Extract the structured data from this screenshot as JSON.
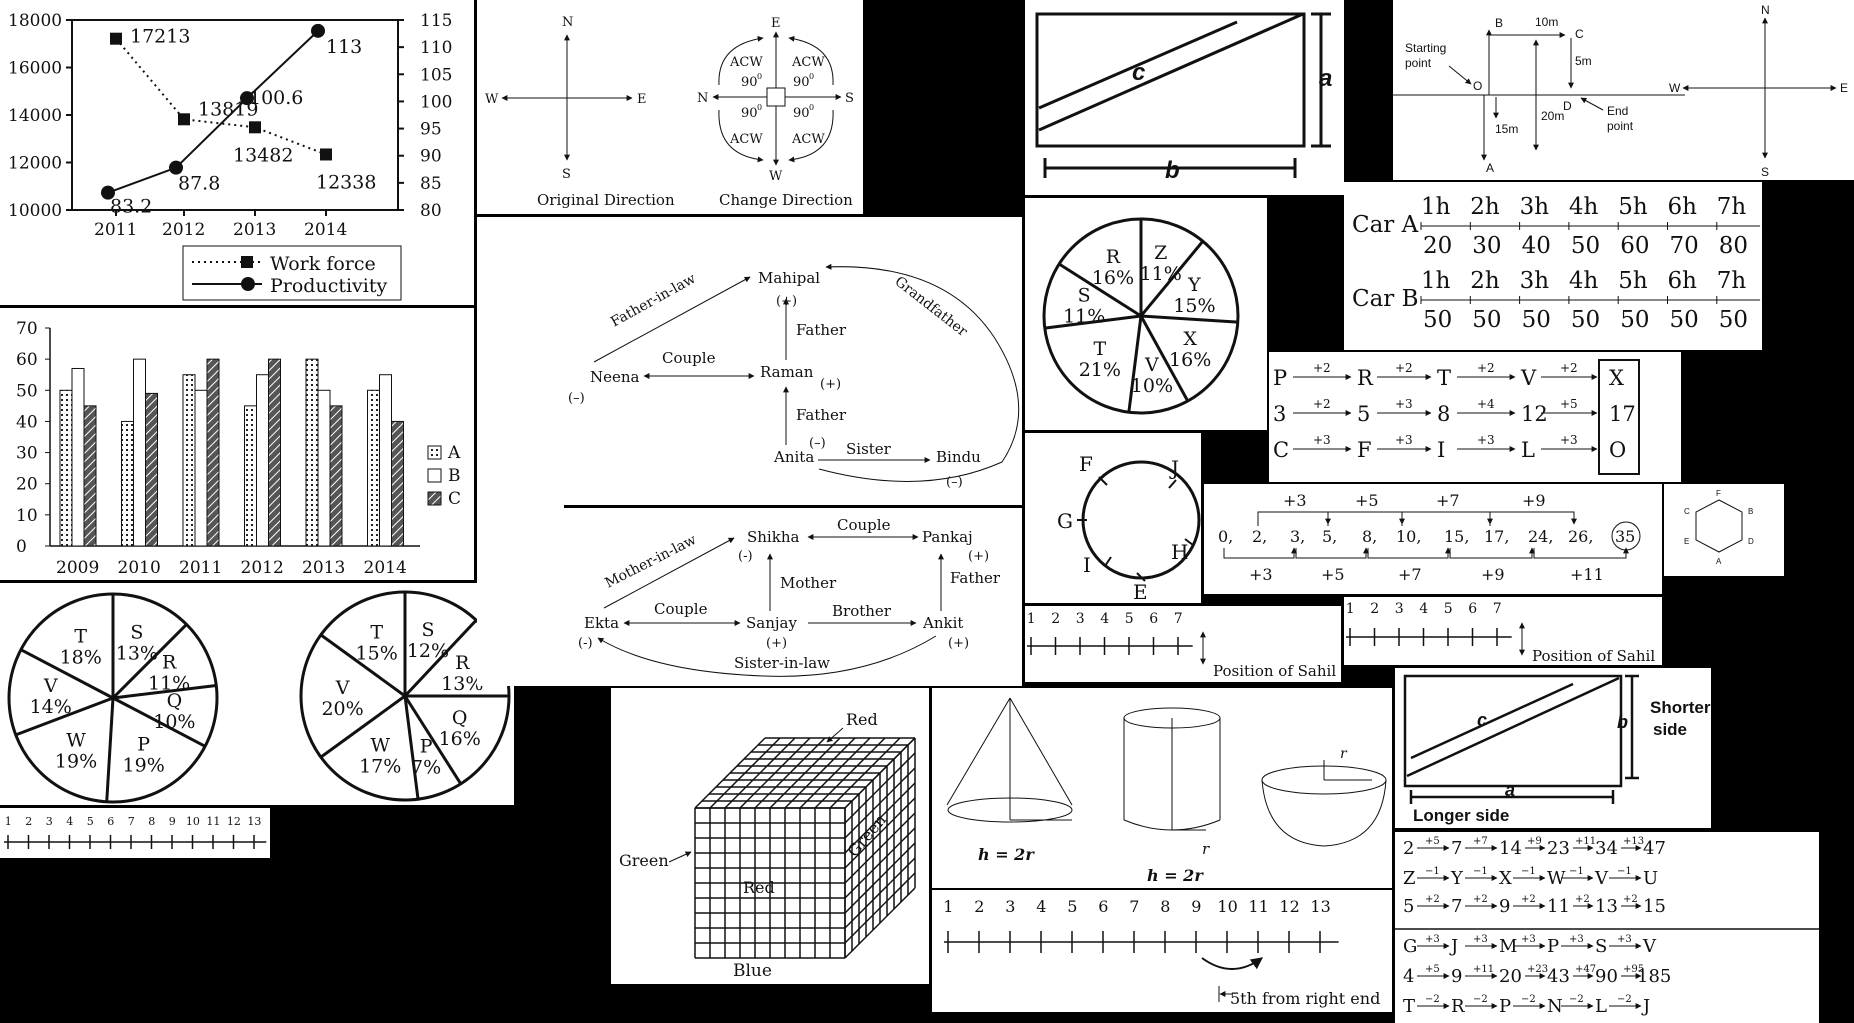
{
  "line_chart": {
    "chart_data": {
      "type": "line",
      "categories": [
        "2011",
        "2012",
        "2013",
        "2014"
      ],
      "series": [
        {
          "name": "Work force",
          "axis": "left",
          "values": [
            17213,
            13819,
            13482,
            12338
          ]
        },
        {
          "name": "Productivity",
          "axis": "right",
          "values": [
            83.2,
            87.8,
            100.6,
            113
          ]
        }
      ],
      "ylim_left": [
        10000,
        18000
      ],
      "ylim_right": [
        80,
        115
      ],
      "yticks_left": [
        "10000",
        "12000",
        "14000",
        "16000",
        "18000"
      ],
      "yticks_right": [
        "80",
        "85",
        "90",
        "95",
        "100",
        "105",
        "110",
        "115"
      ],
      "value_labels": {
        "Work force": [
          "17213",
          "13819",
          "13482",
          "12338"
        ],
        "Productivity": [
          "83.2",
          "87.8",
          "100.6",
          "113"
        ]
      },
      "legend": [
        "Work force",
        "Productivity"
      ]
    }
  },
  "bar_chart": {
    "chart_data": {
      "type": "bar",
      "categories": [
        "2009",
        "2010",
        "2011",
        "2012",
        "2013",
        "2014"
      ],
      "series": [
        {
          "name": "A",
          "values": [
            50,
            40,
            55,
            45,
            60,
            50
          ]
        },
        {
          "name": "B",
          "values": [
            57,
            60,
            50,
            55,
            50,
            55
          ]
        },
        {
          "name": "C",
          "values": [
            45,
            49,
            60,
            60,
            45,
            40
          ]
        }
      ],
      "ylim": [
        0,
        70
      ],
      "yticks": [
        "0",
        "10",
        "20",
        "30",
        "40",
        "50",
        "60",
        "70"
      ]
    }
  },
  "pie1": {
    "chart_data": {
      "type": "pie",
      "labels": [
        "S",
        "R",
        "Q",
        "P",
        "W",
        "V",
        "T"
      ],
      "values": [
        13,
        11,
        10,
        19,
        19,
        14,
        18
      ],
      "texts": [
        "13%",
        "11%",
        "10%",
        "19%",
        "19%",
        "14%",
        "18%"
      ]
    }
  },
  "pie2": {
    "chart_data": {
      "type": "pie",
      "labels": [
        "S",
        "R",
        "Q",
        "P",
        "W",
        "V",
        "T"
      ],
      "values": [
        12,
        13,
        16,
        7,
        17,
        20,
        15
      ],
      "texts": [
        "12%",
        "13%",
        "16%",
        "7%",
        "17%",
        "20%",
        "15%"
      ]
    }
  },
  "pie3": {
    "chart_data": {
      "type": "pie",
      "labels": [
        "Z",
        "Y",
        "X",
        "V",
        "T",
        "S",
        "R"
      ],
      "values": [
        11,
        15,
        16,
        10,
        21,
        11,
        16
      ],
      "texts": [
        "11%",
        "15%",
        "16%",
        "10%",
        "21%",
        "11%",
        "16%"
      ]
    }
  },
  "directions": {
    "n": "N",
    "s": "S",
    "e": "E",
    "w": "W",
    "acw": "ACW",
    "ninety": "90",
    "zero": "0",
    "original": "Original Direction",
    "change": "Change Direction"
  },
  "family1": {
    "mahipal": "Mahipal",
    "neena": "Neena",
    "raman": "Raman",
    "anita": "Anita",
    "bindu": "Bindu",
    "fatherinlaw": "Father-in-law",
    "couple": "Couple",
    "father": "Father",
    "grandfather": "Grandfather",
    "sister": "Sister",
    "plus": "(+)",
    "minus": "(–)"
  },
  "family2": {
    "shikha": "Shikha",
    "pankaj": "Pankaj",
    "ekta": "Ekta",
    "sanjay": "Sanjay",
    "ankit": "Ankit",
    "motherinlaw": "Mother-in-law",
    "couple": "Couple",
    "mother": "Mother",
    "father": "Father",
    "brother": "Brother",
    "sisterinlaw": "Sister-in-law",
    "plus": "(+)",
    "minus": "(-)"
  },
  "rect1": {
    "c": "c",
    "a": "a",
    "b": "b"
  },
  "rect2": {
    "c": "c",
    "a": "a",
    "b": "b",
    "longer": "Longer side",
    "shorter1": "Shorter",
    "shorter2": "side"
  },
  "path_diagram": {
    "b": "B",
    "c": "C",
    "o": "O",
    "a": "A",
    "d": "D",
    "m10": "10m",
    "m5": "5m",
    "m15": "15m",
    "m20": "20m",
    "start1": "Starting",
    "start2": "point",
    "end1": "End",
    "end2": "point"
  },
  "compass2": {
    "n": "N",
    "s": "S",
    "e": "E",
    "w": "W"
  },
  "cars": {
    "car_a": "Car A",
    "car_b": "Car B",
    "hours": [
      "1h",
      "2h",
      "3h",
      "4h",
      "5h",
      "6h",
      "7h"
    ],
    "a_vals": [
      "20",
      "30",
      "40",
      "50",
      "60",
      "70",
      "80"
    ],
    "b_vals": [
      "50",
      "50",
      "50",
      "50",
      "50",
      "50",
      "50"
    ]
  },
  "series_panel": {
    "rows": [
      {
        "terms": [
          "P",
          "R",
          "T",
          "V"
        ],
        "ops": [
          "+2",
          "+2",
          "+2",
          "+2"
        ],
        "ans": "X"
      },
      {
        "terms": [
          "3",
          "5",
          "8",
          "12"
        ],
        "ops": [
          "+2",
          "+3",
          "+4",
          "+5"
        ],
        "ans": "17"
      },
      {
        "terms": [
          "C",
          "F",
          "I",
          "L"
        ],
        "ops": [
          "+3",
          "+3",
          "+3",
          "+3"
        ],
        "ans": "O"
      }
    ]
  },
  "circle_seat": {
    "f": "F",
    "j": "J",
    "g": "G",
    "h": "H",
    "i": "I",
    "e": "E"
  },
  "number_jump": {
    "nums": [
      "0,",
      "2,",
      "3,",
      "5,",
      "8,",
      "10,",
      "15,",
      "17,",
      "24,",
      "26,",
      "35"
    ],
    "top": [
      "+3",
      "+5",
      "+7",
      "+9"
    ],
    "bottom": [
      "+3",
      "+5",
      "+7",
      "+9",
      "+11"
    ]
  },
  "hexagon": {
    "labels": [
      "F",
      "B",
      "D",
      "A",
      "E",
      "C"
    ]
  },
  "sahil1": {
    "nums": [
      "1",
      "2",
      "3",
      "4",
      "5",
      "6",
      "7"
    ],
    "caption": "Position of Sahil"
  },
  "sahil2": {
    "nums": [
      "1",
      "2",
      "3",
      "4",
      "5",
      "6",
      "7"
    ],
    "caption": "Position of Sahil"
  },
  "cube": {
    "red_top": "Red",
    "green_left": "Green",
    "green_right": "Green",
    "red_front": "Red",
    "blue": "Blue"
  },
  "solids": {
    "h1": "h = 2r",
    "h2": "h = 2r",
    "r1": "r",
    "r2": "r"
  },
  "ruler13": {
    "nums": [
      "1",
      "2",
      "3",
      "4",
      "5",
      "6",
      "7",
      "8",
      "9",
      "10",
      "11",
      "12",
      "13"
    ]
  },
  "ruler_right": {
    "nums": [
      "1",
      "2",
      "3",
      "4",
      "5",
      "6",
      "7",
      "8",
      "9",
      "10",
      "11",
      "12",
      "13"
    ],
    "caption": "5th from right end"
  },
  "series_right": {
    "rows": [
      {
        "terms": [
          "2",
          "7",
          "14",
          "23",
          "34",
          "47"
        ],
        "ops": [
          "+5",
          "+7",
          "+9",
          "+11",
          "+13"
        ]
      },
      {
        "terms": [
          "Z",
          "Y",
          "X",
          "W",
          "V",
          "U"
        ],
        "ops": [
          "−1",
          "−1",
          "−1",
          "−1",
          "−1"
        ]
      },
      {
        "terms": [
          "5",
          "7",
          "9",
          "11",
          "13",
          "15"
        ],
        "ops": [
          "+2",
          "+2",
          "+2",
          "+2",
          "+2"
        ]
      },
      {
        "terms": [
          "G",
          "J",
          "M",
          "P",
          "S",
          "V"
        ],
        "ops": [
          "+3",
          "+3",
          "+3",
          "+3",
          "+3"
        ]
      },
      {
        "terms": [
          "4",
          "9",
          "20",
          "43",
          "90",
          "185"
        ],
        "ops": [
          "+5",
          "+11",
          "+23",
          "+47",
          "+95"
        ]
      },
      {
        "terms": [
          "T",
          "R",
          "P",
          "N",
          "L",
          "J"
        ],
        "ops": [
          "−2",
          "−2",
          "−2",
          "−2",
          "−2"
        ]
      }
    ]
  }
}
